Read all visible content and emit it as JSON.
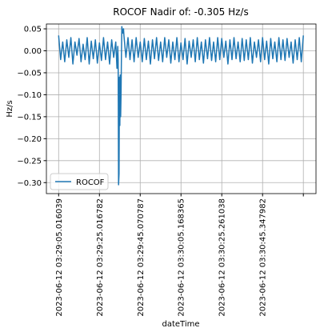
{
  "chart_data": {
    "type": "line",
    "title": "ROCOF Nadir of: -0.305 Hz/s",
    "xlabel": "dateTime",
    "ylabel": "Hz/s",
    "grid": true,
    "legend": "lower left",
    "x": [
      0,
      5,
      10,
      15,
      20,
      25,
      30,
      35,
      40,
      45,
      50,
      55,
      60,
      65,
      70,
      75,
      80,
      85,
      90,
      95,
      100,
      105,
      110,
      115,
      120,
      125,
      130,
      135,
      140,
      143,
      145,
      146,
      147,
      148,
      149,
      150,
      151,
      152,
      153,
      154,
      155,
      157,
      159,
      160,
      165,
      170,
      175,
      180,
      185,
      190,
      195,
      200,
      205,
      210,
      215,
      220,
      225,
      230,
      235,
      240,
      245,
      250,
      255,
      260,
      265,
      270,
      275,
      280,
      285,
      290,
      295,
      300,
      305,
      310,
      315,
      320,
      325,
      330,
      335,
      340,
      345,
      350,
      355,
      360,
      365,
      370,
      375,
      380,
      385,
      390,
      395,
      400,
      405,
      410,
      415,
      420,
      425,
      430,
      435,
      440,
      445,
      450,
      455,
      460,
      465,
      470,
      475,
      480,
      485,
      490,
      495,
      500,
      505,
      510,
      515,
      520,
      525,
      530,
      535,
      540,
      545,
      550,
      555,
      560,
      565,
      570,
      575,
      580,
      585,
      590,
      595,
      600
    ],
    "series": [
      {
        "name": "ROCOF",
        "color": "#1f77b4",
        "values": [
          0.035,
          -0.02,
          0.02,
          -0.025,
          0.025,
          -0.015,
          0.03,
          -0.03,
          0.02,
          -0.01,
          0.028,
          -0.025,
          0.015,
          -0.02,
          0.03,
          -0.03,
          0.022,
          -0.018,
          0.025,
          -0.028,
          0.018,
          -0.022,
          0.03,
          -0.02,
          0.02,
          -0.03,
          0.025,
          -0.015,
          0.02,
          -0.04,
          0.01,
          -0.02,
          -0.305,
          -0.28,
          -0.06,
          -0.17,
          -0.055,
          -0.15,
          -0.1,
          -0.01,
          0.055,
          0.04,
          0.05,
          0.035,
          -0.015,
          0.03,
          -0.02,
          0.025,
          -0.025,
          0.03,
          -0.015,
          0.02,
          -0.025,
          0.028,
          -0.02,
          0.022,
          -0.03,
          0.025,
          -0.018,
          0.03,
          -0.022,
          0.02,
          -0.025,
          0.03,
          -0.015,
          0.025,
          -0.028,
          0.02,
          -0.02,
          0.03,
          -0.025,
          0.018,
          -0.02,
          0.028,
          -0.03,
          0.022,
          -0.015,
          0.025,
          -0.025,
          0.03,
          -0.02,
          0.02,
          -0.028,
          0.025,
          -0.018,
          0.03,
          -0.022,
          0.02,
          -0.025,
          0.03,
          -0.02,
          0.028,
          -0.015,
          0.022,
          -0.03,
          0.025,
          -0.02,
          0.03,
          -0.018,
          0.02,
          -0.025,
          0.028,
          -0.022,
          0.025,
          -0.02,
          0.03,
          -0.028,
          0.02,
          -0.015,
          0.025,
          -0.025,
          0.03,
          -0.02,
          0.022,
          -0.03,
          0.028,
          -0.018,
          0.02,
          -0.025,
          0.03,
          -0.02,
          0.025,
          -0.022,
          0.028,
          -0.015,
          0.02,
          -0.028,
          0.025,
          -0.02,
          0.03,
          -0.025,
          0.035
        ]
      }
    ],
    "xlim": [
      -30,
      631
    ],
    "xticks": [
      {
        "value": 0,
        "label": "2023-06-12 03:29:05.016039"
      },
      {
        "value": 100,
        "label": "2023-06-12 03:29:25.016782"
      },
      {
        "value": 200,
        "label": "2023-06-12 03:29:45.070787"
      },
      {
        "value": 300,
        "label": "2023-06-12 03:30:05.168365"
      },
      {
        "value": 400,
        "label": "2023-06-12 03:30:25.261038"
      },
      {
        "value": 500,
        "label": "2023-06-12 03:30:45.347982"
      },
      {
        "value": 600,
        "label": null
      }
    ],
    "ylim": [
      -0.325,
      0.061
    ],
    "yticks": [
      {
        "value": 0.05,
        "label": "0.05"
      },
      {
        "value": 0,
        "label": "0.00"
      },
      {
        "value": -0.05,
        "label": "−0.05"
      },
      {
        "value": -0.1,
        "label": "−0.10"
      },
      {
        "value": -0.15,
        "label": "−0.15"
      },
      {
        "value": -0.2,
        "label": "−0.20"
      },
      {
        "value": -0.25,
        "label": "−0.25"
      },
      {
        "value": -0.3,
        "label": "−0.30"
      }
    ]
  }
}
